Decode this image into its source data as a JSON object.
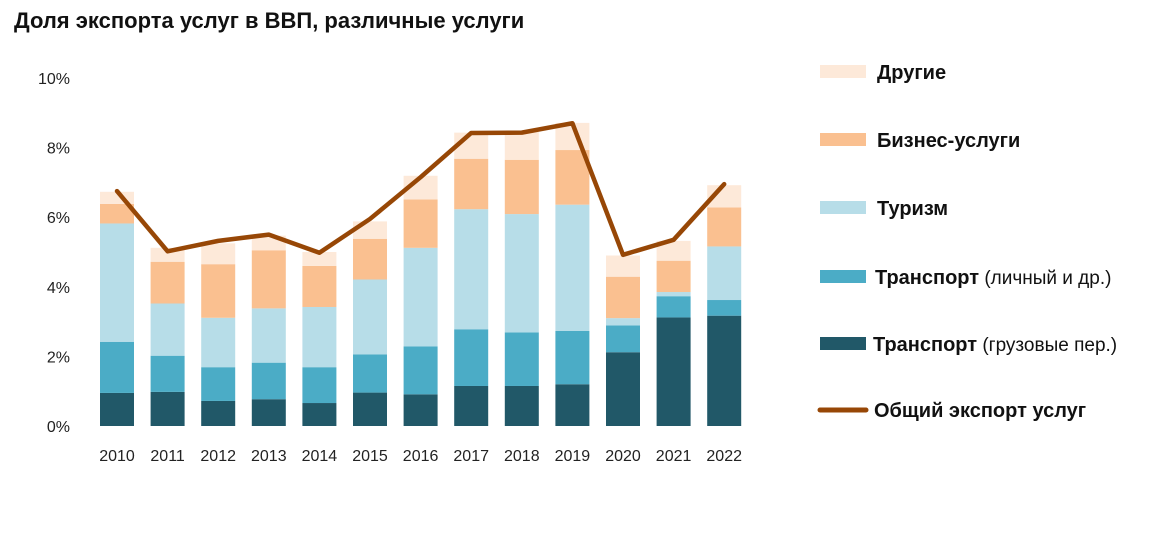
{
  "title": "Доля экспорта услуг в ВВП, различные услуги",
  "chart_data": {
    "type": "bar",
    "stacked": true,
    "categories": [
      "2010",
      "2011",
      "2012",
      "2013",
      "2014",
      "2015",
      "2016",
      "2017",
      "2018",
      "2019",
      "2020",
      "2021",
      "2022"
    ],
    "ylim": [
      0,
      10
    ],
    "yticks": [
      "0%",
      "2%",
      "4%",
      "6%",
      "8%",
      "10%"
    ],
    "grid": false,
    "legend_position": "right",
    "series": [
      {
        "name": "Транспорт",
        "name_suffix": " (грузовые пер.)",
        "color": "#215868",
        "values": [
          0.95,
          0.98,
          0.72,
          0.77,
          0.66,
          0.96,
          0.91,
          1.15,
          1.15,
          1.2,
          2.12,
          3.12,
          3.17
        ]
      },
      {
        "name": "Транспорт",
        "name_suffix": " (личный и др.)",
        "color": "#4bacc6",
        "values": [
          1.47,
          1.04,
          0.97,
          1.05,
          1.03,
          1.1,
          1.38,
          1.63,
          1.54,
          1.53,
          0.77,
          0.61,
          0.45
        ]
      },
      {
        "name": "Туризм",
        "name_suffix": "",
        "color": "#b7dde8",
        "values": [
          3.4,
          1.5,
          1.42,
          1.56,
          1.73,
          2.15,
          2.83,
          3.45,
          3.4,
          3.63,
          0.21,
          0.12,
          1.54
        ]
      },
      {
        "name": "Бизнес-услуги",
        "name_suffix": "",
        "color": "#fac090",
        "values": [
          0.56,
          1.2,
          1.54,
          1.67,
          1.18,
          1.17,
          1.39,
          1.45,
          1.56,
          1.57,
          1.19,
          0.9,
          1.12
        ]
      },
      {
        "name": "Другие",
        "name_suffix": "",
        "color": "#fde9d9",
        "values": [
          0.35,
          0.4,
          0.6,
          0.42,
          0.4,
          0.5,
          0.68,
          0.75,
          0.8,
          0.78,
          0.61,
          0.57,
          0.64
        ]
      }
    ],
    "line": {
      "name": "Общий экспорт услуг",
      "color": "#974706",
      "values": [
        6.75,
        5.02,
        5.32,
        5.5,
        4.98,
        5.95,
        7.15,
        8.42,
        8.43,
        8.7,
        4.92,
        5.35,
        6.95
      ]
    }
  }
}
